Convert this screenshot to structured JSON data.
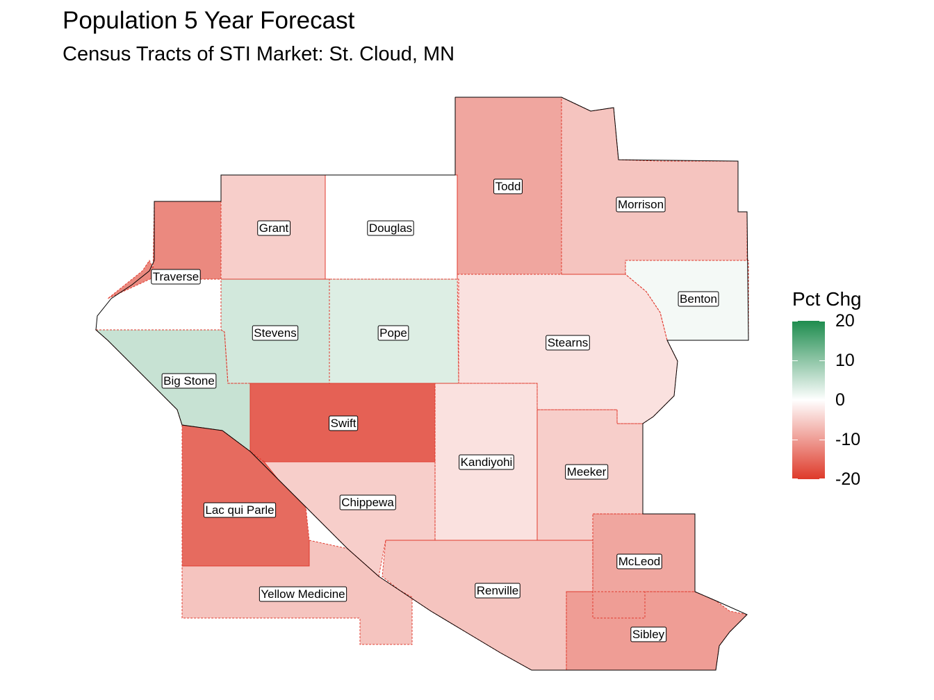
{
  "title": "Population 5 Year Forecast",
  "subtitle": "Census Tracts of STI Market: St. Cloud, MN",
  "legend": {
    "title": "Pct Chg",
    "ticks": [
      "20",
      "10",
      "0",
      "-10",
      "-20"
    ],
    "colors": {
      "high": "#1e8c4e",
      "mid": "#ffffff",
      "low": "#de3a2a"
    }
  },
  "counties": [
    {
      "name": "Traverse",
      "pct": -12
    },
    {
      "name": "Grant",
      "pct": -5
    },
    {
      "name": "Douglas",
      "pct": 0
    },
    {
      "name": "Todd",
      "pct": -9
    },
    {
      "name": "Morrison",
      "pct": -6
    },
    {
      "name": "Benton",
      "pct": 1
    },
    {
      "name": "Stevens",
      "pct": 4
    },
    {
      "name": "Pope",
      "pct": 3
    },
    {
      "name": "Stearns",
      "pct": -3
    },
    {
      "name": "Big Stone",
      "pct": 5
    },
    {
      "name": "Swift",
      "pct": -16
    },
    {
      "name": "Kandiyohi",
      "pct": -3
    },
    {
      "name": "Meeker",
      "pct": -5
    },
    {
      "name": "Chippewa",
      "pct": -5
    },
    {
      "name": "Lac qui Parle",
      "pct": -15
    },
    {
      "name": "McLeod",
      "pct": -9
    },
    {
      "name": "Renville",
      "pct": -6
    },
    {
      "name": "Yellow Medicine",
      "pct": -6
    },
    {
      "name": "Sibley",
      "pct": -10
    }
  ]
}
